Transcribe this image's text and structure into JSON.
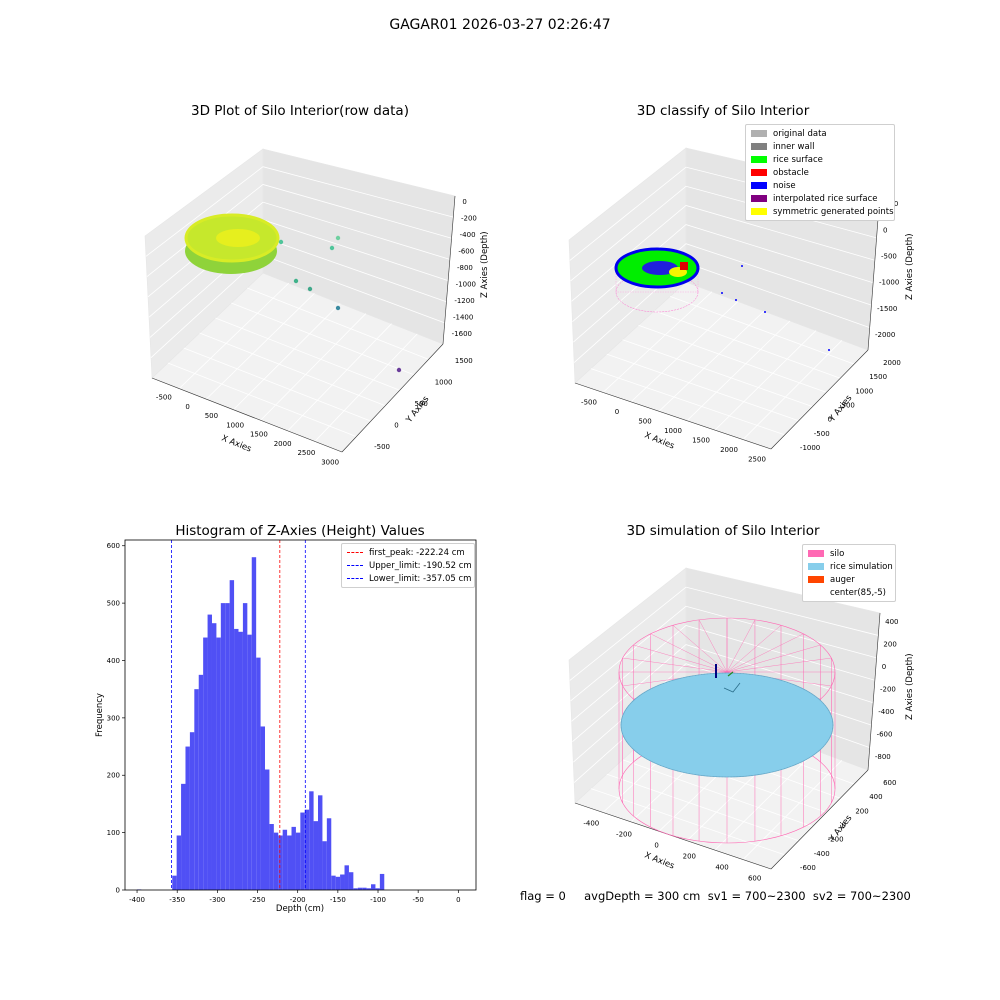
{
  "suptitle": "GAGAR01 2026-03-27 02:26:47",
  "footer_text": "flag = 0     avgDepth = 300 cm  sv1 = 700~2300  sv2 = 700~2300",
  "chart_data": [
    {
      "type": "scatter",
      "title": "3D Plot of Silo Interior(row data)",
      "xlabel": "X Axies",
      "ylabel": "Y Axies",
      "zlabel": "Z Axies (Depth)",
      "x_ticks": [
        "-500",
        "0",
        "500",
        "1000",
        "1500",
        "2000",
        "2500",
        "3000"
      ],
      "y_ticks": [
        "-500",
        "0",
        "500",
        "1000",
        "1500"
      ],
      "z_ticks": [
        "0",
        "-200",
        "-400",
        "-600",
        "-800",
        "-1000",
        "-1200",
        "-1400",
        "-1600"
      ],
      "grid": true
    },
    {
      "type": "scatter",
      "title": "3D classify of Silo Interior",
      "xlabel": "X Axies",
      "ylabel": "Y Axies",
      "zlabel": "Z Axies (Depth)",
      "x_ticks": [
        "-500",
        "0",
        "500",
        "1000",
        "1500",
        "2000",
        "2500"
      ],
      "y_ticks": [
        "-1000",
        "-500",
        "0",
        "500",
        "1000",
        "1500",
        "2000"
      ],
      "z_ticks": [
        "500",
        "0",
        "-500",
        "-1000",
        "-1500",
        "-2000"
      ],
      "legend_position": "top-right",
      "legend": [
        {
          "label": "original data",
          "color": "#b0b0b0"
        },
        {
          "label": "inner wall",
          "color": "#808080"
        },
        {
          "label": "rice surface",
          "color": "#00ff00"
        },
        {
          "label": "obstacle",
          "color": "#ff0000"
        },
        {
          "label": "noise",
          "color": "#0000ff"
        },
        {
          "label": "interpolated rice surface",
          "color": "#800080"
        },
        {
          "label": "symmetric generated points",
          "color": "#ffff00"
        }
      ],
      "grid": true
    },
    {
      "type": "bar",
      "title": "Histogram of Z-Axies (Height) Values",
      "xlabel": "Depth (cm)",
      "ylabel": "Frequency",
      "xlim": [
        -415,
        22
      ],
      "ylim": [
        0,
        610
      ],
      "x_ticks": [
        -400,
        -350,
        -300,
        -250,
        -200,
        -150,
        -100,
        -50,
        0
      ],
      "y_ticks": [
        0,
        100,
        200,
        300,
        400,
        500,
        600
      ],
      "bar_color": "#5050f5",
      "bin_width": 5.5,
      "bins": [
        {
          "x": -400.2,
          "v": 1
        },
        {
          "x": -394.7,
          "v": 0
        },
        {
          "x": -389.2,
          "v": 0
        },
        {
          "x": -383.7,
          "v": 0
        },
        {
          "x": -378.2,
          "v": 0
        },
        {
          "x": -372.7,
          "v": 0
        },
        {
          "x": -367.2,
          "v": 0
        },
        {
          "x": -361.7,
          "v": 0
        },
        {
          "x": -356.2,
          "v": 25
        },
        {
          "x": -350.7,
          "v": 95
        },
        {
          "x": -345.2,
          "v": 185
        },
        {
          "x": -339.7,
          "v": 250
        },
        {
          "x": -334.2,
          "v": 275
        },
        {
          "x": -328.7,
          "v": 350
        },
        {
          "x": -323.2,
          "v": 375
        },
        {
          "x": -317.7,
          "v": 440
        },
        {
          "x": -312.2,
          "v": 480
        },
        {
          "x": -306.7,
          "v": 465
        },
        {
          "x": -301.2,
          "v": 440
        },
        {
          "x": -295.7,
          "v": 500
        },
        {
          "x": -290.2,
          "v": 500
        },
        {
          "x": -284.7,
          "v": 540
        },
        {
          "x": -279.2,
          "v": 455
        },
        {
          "x": -273.7,
          "v": 450
        },
        {
          "x": -268.2,
          "v": 500
        },
        {
          "x": -262.7,
          "v": 445
        },
        {
          "x": -257.2,
          "v": 580
        },
        {
          "x": -251.7,
          "v": 405
        },
        {
          "x": -246.2,
          "v": 285
        },
        {
          "x": -240.7,
          "v": 210
        },
        {
          "x": -235.2,
          "v": 115
        },
        {
          "x": -229.7,
          "v": 100
        },
        {
          "x": -224.2,
          "v": 95
        },
        {
          "x": -218.7,
          "v": 105
        },
        {
          "x": -213.2,
          "v": 95
        },
        {
          "x": -207.7,
          "v": 110
        },
        {
          "x": -202.2,
          "v": 100
        },
        {
          "x": -196.7,
          "v": 135
        },
        {
          "x": -191.2,
          "v": 140
        },
        {
          "x": -185.7,
          "v": 172
        },
        {
          "x": -180.2,
          "v": 120
        },
        {
          "x": -174.7,
          "v": 165
        },
        {
          "x": -169.2,
          "v": 85
        },
        {
          "x": -163.7,
          "v": 125
        },
        {
          "x": -158.2,
          "v": 25
        },
        {
          "x": -152.7,
          "v": 23
        },
        {
          "x": -147.2,
          "v": 27
        },
        {
          "x": -141.7,
          "v": 43
        },
        {
          "x": -136.2,
          "v": 31
        },
        {
          "x": -130.7,
          "v": 3
        },
        {
          "x": -125.2,
          "v": 4
        },
        {
          "x": -119.7,
          "v": 4
        },
        {
          "x": -114.2,
          "v": 3
        },
        {
          "x": -108.7,
          "v": 10
        },
        {
          "x": -103.2,
          "v": 3
        },
        {
          "x": -97.7,
          "v": 28
        }
      ],
      "vlines": [
        {
          "label": "first_peak: -222.24 cm",
          "x": -222.24,
          "color": "#ff0000"
        },
        {
          "label": "Upper_limit: -190.52 cm",
          "x": -190.52,
          "color": "#0000ff"
        },
        {
          "label": "Lower_limit: -357.05 cm",
          "x": -357.05,
          "color": "#0000ff"
        }
      ],
      "legend_position": "top-right"
    },
    {
      "type": "scatter",
      "title": "3D simulation of Silo Interior",
      "xlabel": "X Axies",
      "ylabel": "Y Axies",
      "zlabel": "Z Axies (Depth)",
      "x_ticks": [
        "-400",
        "-200",
        "0",
        "200",
        "400",
        "600"
      ],
      "y_ticks": [
        "-600",
        "-400",
        "-200",
        "0",
        "200",
        "400",
        "600"
      ],
      "z_ticks": [
        "400",
        "200",
        "0",
        "-200",
        "-400",
        "-600",
        "-800"
      ],
      "legend_position": "top-right",
      "legend": [
        {
          "label": "silo",
          "color": "#ff69b4"
        },
        {
          "label": "rice simulation",
          "color": "#87ceeb"
        },
        {
          "label": "auger",
          "color": "#ff4500"
        },
        {
          "label": "center(85,-5)",
          "color": "#ffffff"
        }
      ],
      "grid": true
    }
  ]
}
